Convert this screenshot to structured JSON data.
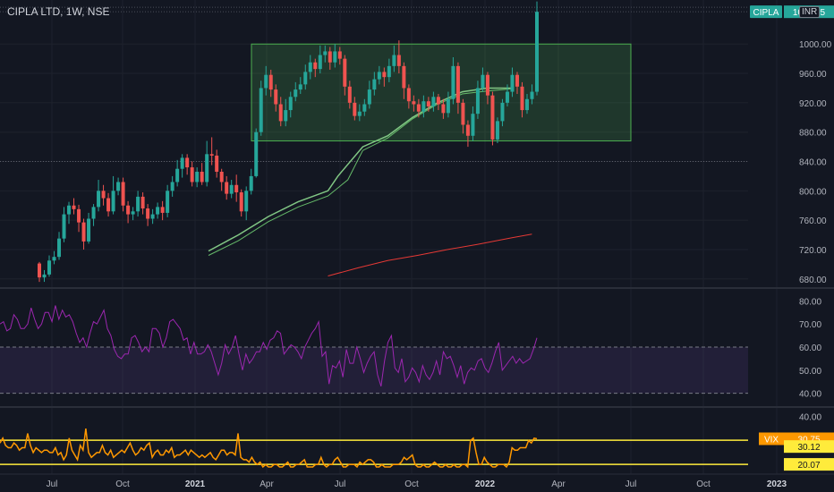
{
  "header": {
    "title": "CIPLA LTD, 1W, NSE",
    "currency": "INR"
  },
  "colors": {
    "bg": "#131722",
    "up": "#26a69a",
    "down": "#ef5350",
    "rsi": "#9c27b0",
    "vix": "#ff9800",
    "level": "#ffeb3b",
    "ma_short": "#66bb6a",
    "ma_long": "#e53935",
    "box": "#4caf50",
    "axis_text": "#b2b5be",
    "badge_symbol": "#26a69a"
  },
  "chart_data": [
    {
      "type": "candlestick",
      "panel": "price",
      "symbol": "CIPLA",
      "yticks": [
        680,
        720,
        760,
        800,
        840,
        880,
        920,
        960,
        1000
      ],
      "ytick_labels": [
        "680.00",
        "720.00",
        "760.00",
        "800.00",
        "840.00",
        "880.00",
        "920.00",
        "960.00",
        "1000.00"
      ],
      "ylim": [
        670,
        1060
      ],
      "x_labels": [
        "Jul",
        "Oct",
        "2021",
        "Apr",
        "Jul",
        "Oct",
        "2022",
        "Apr",
        "Jul",
        "Oct",
        "2023"
      ],
      "last_price": 1043.95,
      "last_price_label": "1043.95",
      "horizontal_level": 840,
      "candles": [
        [
          701,
          682,
          703,
          676
        ],
        [
          682,
          686,
          692,
          676
        ],
        [
          686,
          705,
          712,
          683
        ],
        [
          705,
          710,
          718,
          700
        ],
        [
          710,
          735,
          744,
          706
        ],
        [
          735,
          768,
          778,
          730
        ],
        [
          768,
          780,
          785,
          755
        ],
        [
          780,
          775,
          790,
          768
        ],
        [
          775,
          757,
          781,
          744
        ],
        [
          757,
          731,
          762,
          720
        ],
        [
          731,
          762,
          770,
          728
        ],
        [
          762,
          778,
          782,
          752
        ],
        [
          778,
          800,
          815,
          772
        ],
        [
          800,
          790,
          808,
          780
        ],
        [
          790,
          772,
          797,
          765
        ],
        [
          772,
          800,
          820,
          768
        ],
        [
          800,
          812,
          818,
          794
        ],
        [
          812,
          780,
          818,
          772
        ],
        [
          780,
          768,
          786,
          756
        ],
        [
          768,
          772,
          778,
          760
        ],
        [
          772,
          792,
          800,
          765
        ],
        [
          792,
          776,
          798,
          768
        ],
        [
          776,
          762,
          782,
          752
        ],
        [
          762,
          768,
          775,
          755
        ],
        [
          768,
          778,
          784,
          762
        ],
        [
          778,
          770,
          786,
          760
        ],
        [
          770,
          800,
          808,
          764
        ],
        [
          800,
          812,
          820,
          792
        ],
        [
          812,
          830,
          842,
          806
        ],
        [
          830,
          845,
          850,
          818
        ],
        [
          845,
          832,
          850,
          822
        ],
        [
          832,
          812,
          840,
          806
        ],
        [
          812,
          826,
          832,
          805
        ],
        [
          826,
          812,
          838,
          808
        ],
        [
          812,
          850,
          868,
          806
        ],
        [
          850,
          848,
          873,
          835
        ],
        [
          848,
          826,
          856,
          818
        ],
        [
          826,
          812,
          830,
          800
        ],
        [
          812,
          796,
          820,
          788
        ],
        [
          796,
          808,
          815,
          790
        ],
        [
          808,
          798,
          822,
          785
        ],
        [
          798,
          772,
          802,
          765
        ],
        [
          772,
          800,
          806,
          760
        ],
        [
          800,
          820,
          830,
          795
        ],
        [
          820,
          880,
          885,
          818
        ],
        [
          880,
          940,
          950,
          875
        ],
        [
          940,
          958,
          970,
          930
        ],
        [
          958,
          938,
          965,
          928
        ],
        [
          938,
          918,
          945,
          908
        ],
        [
          918,
          895,
          928,
          888
        ],
        [
          895,
          910,
          925,
          888
        ],
        [
          910,
          928,
          935,
          900
        ],
        [
          928,
          938,
          948,
          922
        ],
        [
          938,
          945,
          955,
          932
        ],
        [
          945,
          962,
          972,
          938
        ],
        [
          962,
          975,
          985,
          952
        ],
        [
          975,
          966,
          980,
          955
        ],
        [
          966,
          985,
          998,
          960
        ],
        [
          985,
          990,
          998,
          975
        ],
        [
          990,
          975,
          996,
          965
        ],
        [
          975,
          990,
          1000,
          968
        ],
        [
          990,
          980,
          996,
          972
        ],
        [
          980,
          942,
          985,
          930
        ],
        [
          942,
          920,
          950,
          912
        ],
        [
          920,
          902,
          928,
          896
        ],
        [
          902,
          908,
          918,
          895
        ],
        [
          908,
          918,
          925,
          902
        ],
        [
          918,
          938,
          950,
          912
        ],
        [
          938,
          952,
          962,
          930
        ],
        [
          952,
          962,
          970,
          945
        ],
        [
          962,
          955,
          968,
          942
        ],
        [
          955,
          970,
          980,
          948
        ],
        [
          970,
          985,
          998,
          962
        ],
        [
          985,
          970,
          1005,
          960
        ],
        [
          970,
          940,
          975,
          925
        ],
        [
          940,
          922,
          945,
          912
        ],
        [
          922,
          918,
          930,
          908
        ],
        [
          918,
          908,
          925,
          900
        ],
        [
          908,
          922,
          930,
          900
        ],
        [
          922,
          915,
          928,
          908
        ],
        [
          915,
          928,
          935,
          908
        ],
        [
          928,
          918,
          932,
          910
        ],
        [
          918,
          906,
          925,
          898
        ],
        [
          906,
          925,
          935,
          900
        ],
        [
          925,
          970,
          982,
          918
        ],
        [
          970,
          920,
          975,
          905
        ],
        [
          920,
          890,
          925,
          878
        ],
        [
          890,
          875,
          896,
          860
        ],
        [
          875,
          905,
          915,
          868
        ],
        [
          905,
          940,
          950,
          898
        ],
        [
          940,
          958,
          968,
          935
        ],
        [
          958,
          930,
          962,
          918
        ],
        [
          930,
          870,
          935,
          862
        ],
        [
          870,
          895,
          900,
          865
        ],
        [
          895,
          920,
          925,
          888
        ],
        [
          920,
          935,
          945,
          915
        ],
        [
          935,
          958,
          968,
          928
        ],
        [
          958,
          942,
          962,
          932
        ],
        [
          942,
          910,
          948,
          900
        ],
        [
          910,
          925,
          932,
          905
        ],
        [
          925,
          935,
          945,
          918
        ],
        [
          935,
          1043.95,
          1058,
          930
        ]
      ],
      "rectangle": {
        "y1": 868,
        "y2": 1000
      },
      "ma_short": [
        [
          34,
          718
        ],
        [
          40,
          740
        ],
        [
          46,
          765
        ],
        [
          52,
          785
        ],
        [
          58,
          800
        ],
        [
          60,
          820
        ],
        [
          65,
          860
        ],
        [
          70,
          875
        ],
        [
          75,
          900
        ],
        [
          80,
          920
        ],
        [
          85,
          935
        ],
        [
          90,
          940
        ],
        [
          95,
          940
        ]
      ],
      "ma_short_2": [
        [
          34,
          712
        ],
        [
          40,
          732
        ],
        [
          46,
          758
        ],
        [
          52,
          778
        ],
        [
          58,
          793
        ],
        [
          62,
          815
        ],
        [
          65,
          855
        ],
        [
          70,
          872
        ],
        [
          75,
          898
        ],
        [
          80,
          918
        ],
        [
          85,
          932
        ],
        [
          90,
          936
        ],
        [
          95,
          939
        ]
      ],
      "ma_long": [
        [
          58,
          684
        ],
        [
          64,
          695
        ],
        [
          70,
          705
        ],
        [
          76,
          712
        ],
        [
          82,
          720
        ],
        [
          88,
          727
        ],
        [
          95,
          736
        ],
        [
          99,
          741
        ]
      ]
    },
    {
      "type": "line",
      "panel": "rsi",
      "name": "",
      "yticks": [
        40,
        50,
        60,
        70,
        80
      ],
      "ytick_labels": [
        "40.00",
        "50.00",
        "60.00",
        "70.00",
        "80.00"
      ],
      "ylim": [
        36,
        84
      ],
      "band": [
        40,
        60
      ],
      "values": [
        70,
        71,
        67,
        68,
        74,
        72,
        68,
        68,
        70,
        77,
        72,
        68,
        70,
        75,
        75,
        71,
        78,
        72,
        76,
        73,
        74,
        71,
        66,
        62,
        64,
        60,
        66,
        71,
        70,
        73,
        76,
        68,
        65,
        59,
        56,
        55,
        57,
        57,
        64,
        65,
        62,
        58,
        60,
        58,
        68,
        68,
        66,
        60,
        64,
        71,
        72,
        70,
        68,
        63,
        64,
        57,
        62,
        57,
        57,
        58,
        61,
        58,
        53,
        48,
        53,
        61,
        57,
        60,
        65,
        57,
        50,
        57,
        53,
        55,
        58,
        58,
        62,
        59,
        63,
        64,
        67,
        66,
        57,
        59,
        61,
        60,
        58,
        55,
        60,
        63,
        66,
        68,
        71,
        56,
        58,
        44,
        52,
        51,
        54,
        47,
        59,
        53,
        53,
        60,
        55,
        49,
        53,
        56,
        58,
        48,
        43,
        54,
        62,
        65,
        51,
        49,
        55,
        45,
        47,
        51,
        49,
        45,
        52,
        48,
        46,
        49,
        54,
        48,
        58,
        55,
        56,
        52,
        47,
        52,
        44,
        49,
        51,
        50,
        54,
        55,
        51,
        49,
        53,
        58,
        62,
        50,
        52,
        54,
        56,
        53,
        55,
        53,
        54,
        55,
        59,
        64
      ]
    },
    {
      "type": "line",
      "panel": "vix",
      "name": "VIX",
      "ylim": [
        16,
        44
      ],
      "ytick_labels": [
        "40.00"
      ],
      "yticks": [
        40
      ],
      "levels": [
        30.12,
        20.07
      ],
      "level_labels": [
        "30.12",
        "20.07"
      ],
      "last_value": 30.75,
      "last_label": "30.75",
      "badge_label": "VIX",
      "values": [
        29,
        31,
        28,
        27,
        27,
        29,
        28,
        26,
        27,
        27,
        33,
        28,
        25,
        27,
        26,
        25,
        26,
        26,
        25,
        25,
        27,
        24,
        25,
        22,
        24,
        31,
        26,
        24,
        22,
        28,
        26,
        35,
        25,
        23,
        24,
        25,
        25,
        28,
        25,
        24,
        26,
        23,
        24,
        25,
        26,
        25,
        27,
        29,
        26,
        24,
        25,
        27,
        26,
        28,
        29,
        23,
        25,
        26,
        24,
        24,
        26,
        25,
        27,
        23,
        24,
        24,
        25,
        26,
        24,
        26,
        25,
        24,
        23,
        24,
        23,
        24,
        25,
        23,
        22,
        24,
        26,
        26,
        24,
        25,
        25,
        24,
        33,
        23,
        22,
        22,
        21,
        23,
        21,
        20,
        21,
        19,
        20,
        19,
        19,
        20,
        20,
        19,
        19,
        20,
        21,
        19,
        19,
        20,
        20,
        21,
        22,
        19,
        19,
        19,
        20,
        20,
        23,
        20,
        19,
        20,
        20,
        22,
        23,
        21,
        19,
        19,
        20,
        20,
        20,
        19,
        21,
        20,
        21,
        22,
        22,
        21,
        19,
        19,
        20,
        19,
        19,
        19,
        20,
        20,
        20,
        21,
        23,
        22,
        23,
        24,
        20,
        19,
        19,
        20,
        19,
        19,
        20,
        21,
        20,
        19,
        19,
        20,
        19,
        19,
        20,
        19,
        19,
        20,
        20,
        19,
        30,
        31,
        25,
        20,
        20,
        23,
        21,
        20,
        19,
        19,
        20,
        20,
        20,
        19,
        21,
        27,
        26,
        26,
        27,
        27,
        27,
        30,
        29,
        31,
        30.75
      ]
    }
  ]
}
